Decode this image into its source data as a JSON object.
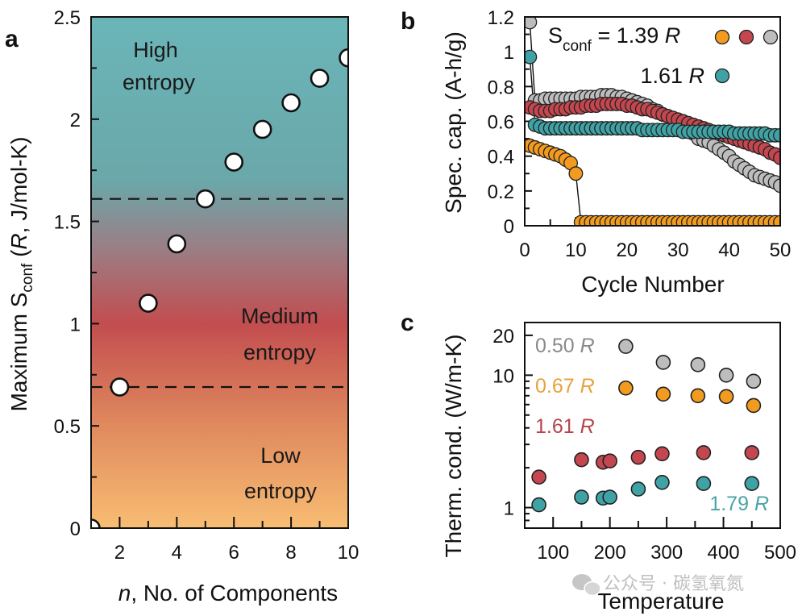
{
  "watermark": "公众号 · 碳氢氧氮",
  "chart_data": [
    {
      "panel": "a",
      "type": "scatter",
      "title": "",
      "xlabel_italic": "n",
      "xlabel_rest": ", No. of Components",
      "ylabel_prefix": "Maximum S",
      "ylabel_sub": "conf",
      "ylabel_mid": " (",
      "ylabel_italic": "R",
      "ylabel_suffix": ", J/mol-K)",
      "xlim": [
        1,
        10
      ],
      "ylim": [
        0,
        2.5
      ],
      "xticks": [
        2,
        4,
        6,
        8,
        10
      ],
      "xtick_labels": [
        "2",
        "4",
        "6",
        "8",
        "10"
      ],
      "xminor": [
        1,
        3,
        5,
        7,
        9
      ],
      "yticks": [
        0,
        0.5,
        1,
        1.5,
        2,
        2.5
      ],
      "ytick_labels": [
        "0",
        "0.5",
        "1",
        "1.5",
        "2",
        "2.5"
      ],
      "yminor": [
        0.25,
        0.75,
        1.25,
        1.75,
        2.25
      ],
      "x": [
        1,
        2,
        3,
        4,
        5,
        6,
        7,
        8,
        9,
        10
      ],
      "y": [
        0,
        0.69,
        1.1,
        1.39,
        1.61,
        1.79,
        1.95,
        2.08,
        2.2,
        2.3
      ],
      "thresholds": [
        0.69,
        1.61
      ],
      "regions": [
        {
          "line1": "High",
          "line2": "entropy"
        },
        {
          "line1": "Medium",
          "line2": "entropy"
        },
        {
          "line1": "Low",
          "line2": "entropy"
        }
      ],
      "gradient_colors": {
        "top": "#6bb5b8",
        "upper_mid": "#6aa8aa",
        "mid": "#9a7f86",
        "red": "#c24d4f",
        "low": "#e08a5e",
        "bottom": "#f8bd73"
      }
    },
    {
      "panel": "b",
      "type": "scatter",
      "xlabel": "Cycle Number",
      "ylabel": "Spec. cap. (A-h/g)",
      "xlim": [
        0,
        50
      ],
      "ylim": [
        0,
        1.2
      ],
      "xticks": [
        0,
        10,
        20,
        30,
        40,
        50
      ],
      "xtick_labels": [
        "0",
        "10",
        "20",
        "30",
        "40",
        "50"
      ],
      "xminor": [
        5
      ],
      "yticks": [
        0,
        0.2,
        0.4,
        0.6,
        0.8,
        1,
        1.2
      ],
      "ytick_labels": [
        "0",
        "0.2",
        "0.4",
        "0.6",
        "0.8",
        "1",
        "1.2"
      ],
      "yminor": [
        0.1,
        0.3,
        0.5,
        0.7,
        0.9,
        1.1
      ],
      "legend": {
        "line1_prefix": "S",
        "line1_sub": "conf",
        "line1_mid": " = 1.39 ",
        "line1_italic": "R",
        "line2_value": "1.61 ",
        "line2_italic": "R",
        "line1_colors": [
          "#f29b1f",
          "#c4474f",
          "#bdbdbd"
        ],
        "line2_colors": [
          "#3fa3a5"
        ],
        "placement": "top-right"
      },
      "series": [
        {
          "name": "1.39 R (orange)",
          "color": "#f29b1f",
          "values": [
            0.46,
            0.45,
            0.44,
            0.43,
            0.42,
            0.41,
            0.4,
            0.38,
            0.36,
            0.3,
            0.02,
            0.02,
            0.02,
            0.02,
            0.02,
            0.02,
            0.02,
            0.02,
            0.02,
            0.02,
            0.02,
            0.02,
            0.02,
            0.02,
            0.02,
            0.02,
            0.02,
            0.02,
            0.02,
            0.02,
            0.02,
            0.02,
            0.02,
            0.02,
            0.02,
            0.02,
            0.02,
            0.02,
            0.02,
            0.02,
            0.02,
            0.02,
            0.02,
            0.02,
            0.02,
            0.02,
            0.02,
            0.02,
            0.02,
            0.02
          ]
        },
        {
          "name": "1.39 R (red)",
          "color": "#c4474f",
          "values": [
            0.68,
            0.67,
            0.66,
            0.66,
            0.66,
            0.67,
            0.67,
            0.67,
            0.68,
            0.68,
            0.68,
            0.69,
            0.69,
            0.69,
            0.7,
            0.7,
            0.7,
            0.7,
            0.7,
            0.69,
            0.69,
            0.68,
            0.67,
            0.67,
            0.66,
            0.65,
            0.64,
            0.63,
            0.62,
            0.61,
            0.6,
            0.59,
            0.58,
            0.57,
            0.56,
            0.55,
            0.54,
            0.53,
            0.52,
            0.51,
            0.5,
            0.49,
            0.48,
            0.47,
            0.46,
            0.45,
            0.44,
            0.42,
            0.41,
            0.39
          ]
        },
        {
          "name": "1.39 R (gray)",
          "color": "#bdbdbd",
          "values": [
            1.17,
            0.72,
            0.72,
            0.73,
            0.73,
            0.73,
            0.73,
            0.73,
            0.73,
            0.73,
            0.74,
            0.74,
            0.74,
            0.74,
            0.75,
            0.75,
            0.75,
            0.74,
            0.74,
            0.73,
            0.72,
            0.71,
            0.7,
            0.69,
            0.67,
            0.66,
            0.64,
            0.63,
            0.61,
            0.59,
            0.57,
            0.55,
            0.53,
            0.5,
            0.49,
            0.48,
            0.46,
            0.44,
            0.42,
            0.4,
            0.37,
            0.35,
            0.33,
            0.31,
            0.29,
            0.28,
            0.27,
            0.26,
            0.25,
            0.23
          ]
        },
        {
          "name": "1.61 R (teal)",
          "color": "#3fa3a5",
          "values": [
            0.97,
            0.58,
            0.57,
            0.56,
            0.56,
            0.56,
            0.56,
            0.56,
            0.56,
            0.56,
            0.56,
            0.56,
            0.56,
            0.56,
            0.56,
            0.56,
            0.56,
            0.56,
            0.56,
            0.56,
            0.56,
            0.56,
            0.55,
            0.55,
            0.55,
            0.55,
            0.55,
            0.55,
            0.55,
            0.55,
            0.54,
            0.54,
            0.54,
            0.54,
            0.54,
            0.54,
            0.54,
            0.54,
            0.54,
            0.54,
            0.53,
            0.53,
            0.53,
            0.53,
            0.53,
            0.53,
            0.53,
            0.52,
            0.52,
            0.52
          ]
        }
      ]
    },
    {
      "panel": "c",
      "type": "scatter",
      "yscale": "log",
      "xlabel": "Temperature",
      "ylabel": "Therm. cond. (W/m-K)",
      "xlim": [
        50,
        500
      ],
      "ylim": [
        0.7,
        25
      ],
      "xticks": [
        100,
        200,
        300,
        400,
        500
      ],
      "xtick_labels": [
        "100",
        "200",
        "300",
        "400",
        "500"
      ],
      "xminor": [
        150,
        250,
        350,
        450
      ],
      "yticks": [
        1,
        10,
        20
      ],
      "ytick_labels": [
        "1",
        "10",
        "20"
      ],
      "yminor": [
        2,
        3,
        4,
        5,
        6,
        7,
        8,
        9
      ],
      "series": [
        {
          "name": "0.50 R",
          "label_value": "0.50 ",
          "label_italic": "R",
          "color": "#bdbdbd",
          "label_color": "#8a8a8a",
          "x": [
            228,
            294,
            355,
            405,
            453
          ],
          "y": [
            16.5,
            12.5,
            12.0,
            10.0,
            9.0
          ]
        },
        {
          "name": "0.67 R",
          "label_value": "0.67 ",
          "label_italic": "R",
          "color": "#f29b1f",
          "label_color": "#e8a13c",
          "x": [
            228,
            294,
            355,
            405,
            453
          ],
          "y": [
            8.0,
            7.2,
            7.0,
            6.9,
            5.9
          ]
        },
        {
          "name": "1.61 R",
          "label_value": "1.61 ",
          "label_italic": "R",
          "color": "#c4474f",
          "label_color": "#b5444c",
          "x": [
            75,
            150,
            188,
            200,
            250,
            292,
            365,
            450
          ],
          "y": [
            1.7,
            2.3,
            2.2,
            2.25,
            2.4,
            2.55,
            2.6,
            2.6
          ]
        },
        {
          "name": "1.79 R",
          "label_value": "1.79 ",
          "label_italic": "R",
          "color": "#3fa3a5",
          "label_color": "#4aa5a4",
          "x": [
            75,
            150,
            188,
            200,
            250,
            292,
            365,
            450
          ],
          "y": [
            1.05,
            1.2,
            1.18,
            1.2,
            1.38,
            1.55,
            1.52,
            1.52
          ]
        }
      ]
    }
  ]
}
